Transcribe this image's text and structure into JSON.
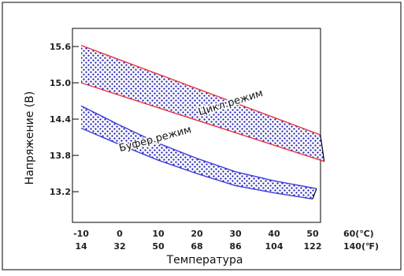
{
  "chart_data": {
    "type": "area",
    "title": "",
    "xlabel": "Температура",
    "ylabel": "Напряжение (В)",
    "xlim": [
      -12,
      62
    ],
    "ylim": [
      12.8,
      15.8
    ],
    "x_ticks_c": [
      "-10",
      "0",
      "10",
      "20",
      "30",
      "40",
      "50",
      "60(℃)"
    ],
    "x_ticks_f": [
      "14",
      "32",
      "50",
      "68",
      "86",
      "104",
      "122",
      "140(℉)"
    ],
    "x_tick_values": [
      -10,
      0,
      10,
      20,
      30,
      40,
      50,
      60
    ],
    "y_ticks": [
      "15.6",
      "15.0",
      "14.4",
      "13.8",
      "13.2"
    ],
    "y_tick_values": [
      15.6,
      15.0,
      14.4,
      13.8,
      13.2
    ],
    "grid": false,
    "series": [
      {
        "name": "Цикл.режим",
        "color": "#e8333a",
        "fill": "#1a1ab0",
        "upper": {
          "x": [
            -10,
            52
          ],
          "y": [
            15.62,
            14.14
          ]
        },
        "lower": {
          "x": [
            -10,
            53
          ],
          "y": [
            15.0,
            13.7
          ]
        }
      },
      {
        "name": "Буфер.режим",
        "color": "#3a3ae0",
        "fill": "#1a1ab0",
        "upper": {
          "x": [
            -10,
            0,
            10,
            20,
            30,
            40,
            51
          ],
          "y": [
            14.62,
            14.3,
            14.0,
            13.75,
            13.53,
            13.38,
            13.25
          ]
        },
        "lower": {
          "x": [
            -10,
            0,
            10,
            20,
            30,
            40,
            50
          ],
          "y": [
            14.25,
            13.98,
            13.72,
            13.5,
            13.3,
            13.18,
            13.08
          ]
        }
      }
    ]
  }
}
